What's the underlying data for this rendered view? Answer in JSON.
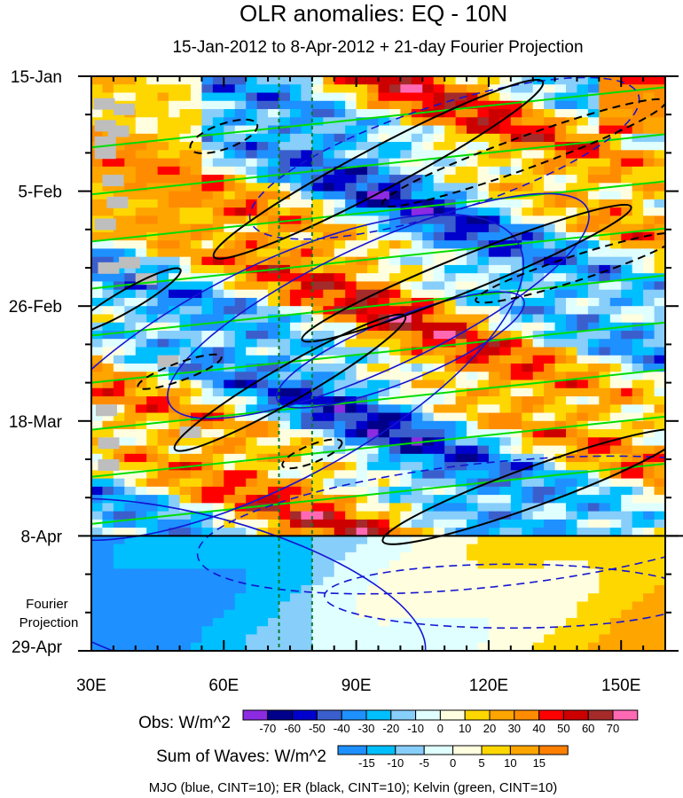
{
  "chart_data": {
    "type": "heatmap",
    "title": "OLR anomalies: EQ - 10N",
    "subtitle": "15-Jan-2012 to 8-Apr-2012 + 21-day Fourier Projection",
    "xlabel": "",
    "ylabel": "",
    "x_ticks": [
      "30E",
      "60E",
      "90E",
      "120E",
      "150E"
    ],
    "x_tick_values": [
      30,
      60,
      90,
      120,
      150
    ],
    "xlim": [
      30,
      160
    ],
    "y_ticks": [
      "15-Jan",
      "5-Feb",
      "26-Feb",
      "18-Mar",
      "8-Apr",
      "29-Apr"
    ],
    "y_tick_days": [
      0,
      21,
      42,
      63,
      84,
      105
    ],
    "ylim_days": [
      0,
      105
    ],
    "obs_end_day": 84,
    "projection_label": "Fourier\nProjection",
    "reference_lines_lon": [
      72.5,
      80
    ],
    "obs_colorbar": {
      "label": "Obs: W/m^2",
      "levels": [
        "-70",
        "-60",
        "-50",
        "-40",
        "-30",
        "-20",
        "-10",
        "0",
        "10",
        "20",
        "30",
        "40",
        "50",
        "60",
        "70"
      ],
      "colors": [
        "#8c2be2",
        "#00008b",
        "#0000cd",
        "#3a5fcd",
        "#1e90ff",
        "#00bfff",
        "#87cefa",
        "#e0ffff",
        "#ffffe0",
        "#ffd700",
        "#ffa500",
        "#ff8c00",
        "#ff0000",
        "#cd0000",
        "#a52a2a",
        "#ff69b4"
      ]
    },
    "waves_colorbar": {
      "label": "Sum of Waves: W/m^2",
      "levels": [
        "-15",
        "-10",
        "-5",
        "0",
        "5",
        "10",
        "15"
      ],
      "colors": [
        "#1e90ff",
        "#00bfff",
        "#87cefa",
        "#e0ffff",
        "#ffffe0",
        "#ffd700",
        "#ffa500",
        "#ff7f00"
      ]
    },
    "contour_legend": "MJO (blue, CINT=10); ER (black, CINT=10); Kelvin (green, CINT=10)",
    "contour_colors": {
      "mjo": "#1414d2",
      "er": "#000000",
      "kelvin": "#00dd00"
    }
  }
}
